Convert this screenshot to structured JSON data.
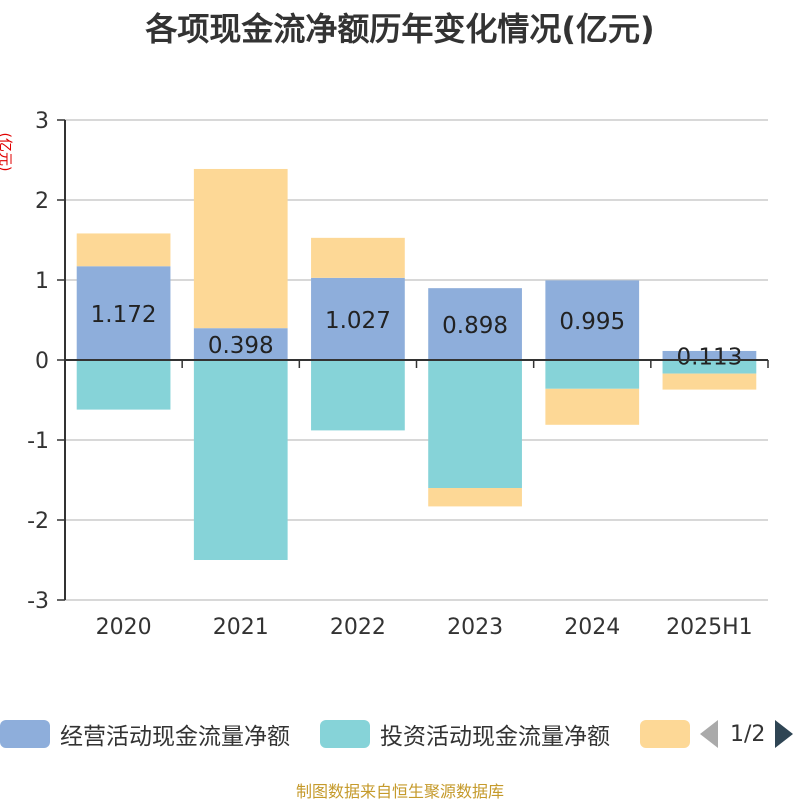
{
  "title": "各项现金流净额历年变化情况(亿元)",
  "y_unit": "(亿元)",
  "source": "制图数据来自恒生聚源数据库",
  "legend_pager": "1/2",
  "colors": {
    "operating": "#8eaedb",
    "investing": "#86d3d8",
    "third": "#fdd896",
    "axis": "#333333",
    "grid": "#cccccc"
  },
  "chart_data": {
    "type": "bar",
    "stacked": true,
    "title": "各项现金流净额历年变化情况(亿元)",
    "ylabel": "(亿元)",
    "ylim": [
      -3,
      3
    ],
    "yticks": [
      3,
      2,
      1,
      0,
      -1,
      -2,
      -3
    ],
    "categories": [
      "2020",
      "2021",
      "2022",
      "2023",
      "2024",
      "2025H1"
    ],
    "series": [
      {
        "name": "经营活动现金流量净额",
        "values": [
          1.172,
          0.398,
          1.027,
          0.898,
          0.995,
          0.113
        ],
        "labels": [
          "1.172",
          "0.398",
          "1.027",
          "0.898",
          "0.995",
          "0.113"
        ]
      },
      {
        "name": "投资活动现金流量净额",
        "values": [
          -0.62,
          -2.5,
          -0.88,
          -1.6,
          -0.36,
          -0.17
        ]
      },
      {
        "name": "",
        "values": [
          0.41,
          1.99,
          0.5,
          -0.23,
          -0.45,
          -0.2
        ]
      }
    ],
    "grid": true,
    "legend_position": "bottom"
  }
}
